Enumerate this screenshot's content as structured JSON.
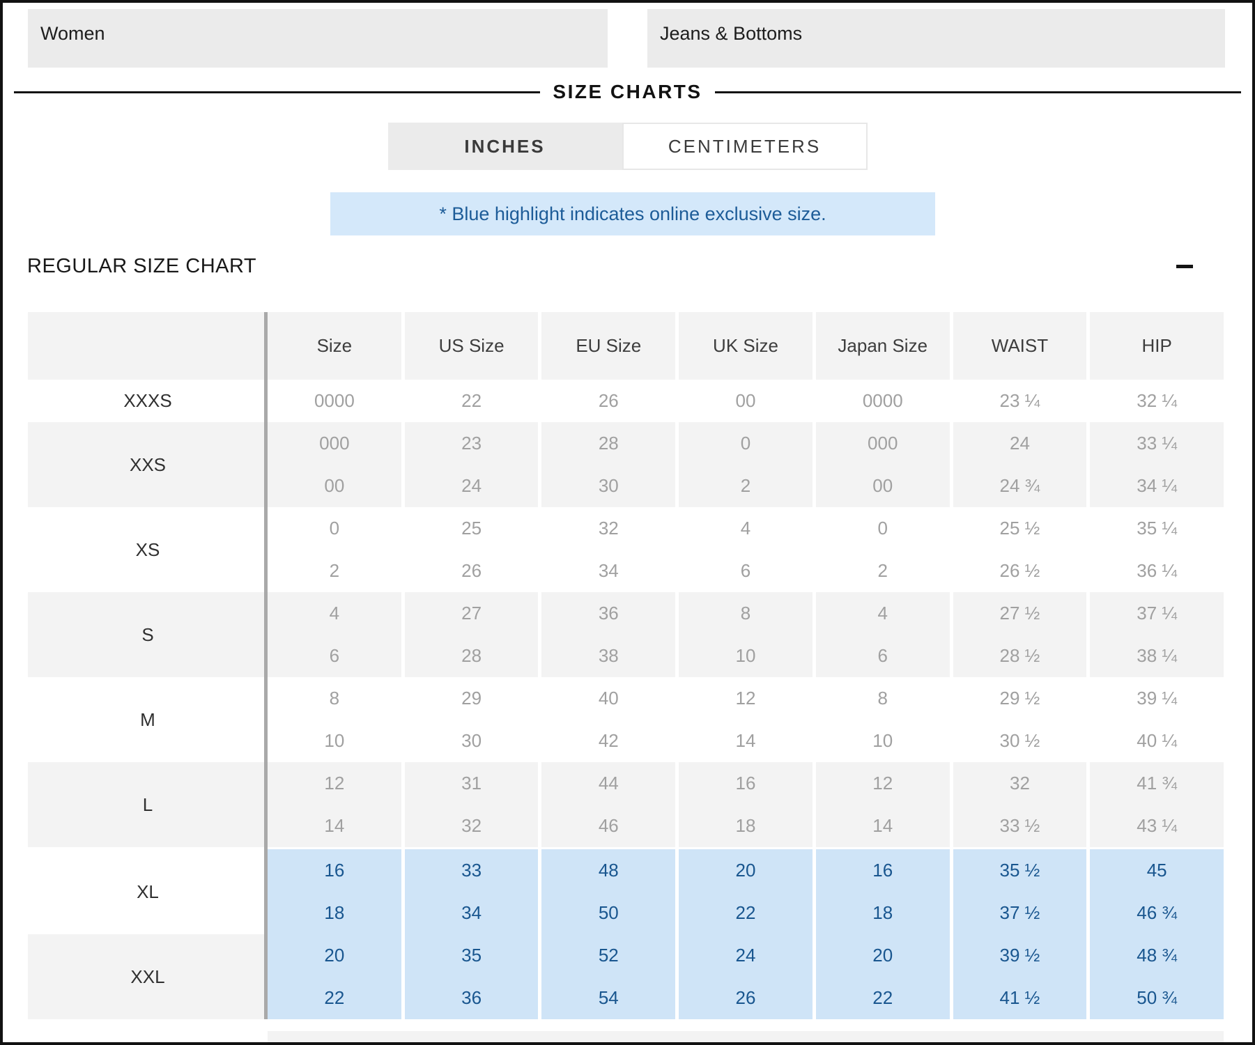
{
  "filters": {
    "gender": "Women",
    "category": "Jeans & Bottoms"
  },
  "page": {
    "title": "SIZE CHARTS"
  },
  "tabs": [
    {
      "label": "INCHES",
      "active": true
    },
    {
      "label": "CENTIMETERS",
      "active": false
    }
  ],
  "note": {
    "text": "* Blue highlight indicates online exclusive size."
  },
  "section": {
    "title": "REGULAR SIZE CHART",
    "state": "expanded"
  },
  "size_chart": {
    "unit": "INCHES",
    "columns": [
      "Size",
      "US Size",
      "EU Size",
      "UK Size",
      "Japan Size",
      "WAIST",
      "HIP"
    ],
    "groups": [
      {
        "label": "XXXS",
        "shade": "white",
        "online_exclusive": false,
        "rows": [
          [
            "0000",
            "22",
            "26",
            "00",
            "0000",
            "23 ¼",
            "32 ¼"
          ]
        ]
      },
      {
        "label": "XXS",
        "shade": "gray",
        "online_exclusive": false,
        "rows": [
          [
            "000",
            "23",
            "28",
            "0",
            "000",
            "24",
            "33 ¼"
          ],
          [
            "00",
            "24",
            "30",
            "2",
            "00",
            "24 ¾",
            "34 ¼"
          ]
        ]
      },
      {
        "label": "XS",
        "shade": "white",
        "online_exclusive": false,
        "rows": [
          [
            "0",
            "25",
            "32",
            "4",
            "0",
            "25 ½",
            "35 ¼"
          ],
          [
            "2",
            "26",
            "34",
            "6",
            "2",
            "26 ½",
            "36 ¼"
          ]
        ]
      },
      {
        "label": "S",
        "shade": "gray",
        "online_exclusive": false,
        "rows": [
          [
            "4",
            "27",
            "36",
            "8",
            "4",
            "27 ½",
            "37 ¼"
          ],
          [
            "6",
            "28",
            "38",
            "10",
            "6",
            "28 ½",
            "38 ¼"
          ]
        ]
      },
      {
        "label": "M",
        "shade": "white",
        "online_exclusive": false,
        "rows": [
          [
            "8",
            "29",
            "40",
            "12",
            "8",
            "29 ½",
            "39 ¼"
          ],
          [
            "10",
            "30",
            "42",
            "14",
            "10",
            "30 ½",
            "40 ¼"
          ]
        ]
      },
      {
        "label": "L",
        "shade": "gray",
        "online_exclusive": false,
        "rows": [
          [
            "12",
            "31",
            "44",
            "16",
            "12",
            "32",
            "41 ¾"
          ],
          [
            "14",
            "32",
            "46",
            "18",
            "14",
            "33 ½",
            "43 ¼"
          ]
        ]
      },
      {
        "label": "XL",
        "shade": "white",
        "online_exclusive": true,
        "rows": [
          [
            "16",
            "33",
            "48",
            "20",
            "16",
            "35 ½",
            "45"
          ],
          [
            "18",
            "34",
            "50",
            "22",
            "18",
            "37 ½",
            "46 ¾"
          ]
        ]
      },
      {
        "label": "XXL",
        "shade": "gray",
        "online_exclusive": true,
        "rows": [
          [
            "20",
            "35",
            "52",
            "24",
            "20",
            "39 ½",
            "48 ¾"
          ],
          [
            "22",
            "36",
            "54",
            "26",
            "22",
            "41 ½",
            "50 ¾"
          ]
        ]
      }
    ]
  },
  "colors": {
    "highlight_bg": "#cfe4f7",
    "highlight_text": "#19568f",
    "note_bg": "#d4e8fa",
    "note_text": "#1d5c98",
    "row_gray": "#f3f3f3",
    "select_gray": "#ebebeb"
  }
}
